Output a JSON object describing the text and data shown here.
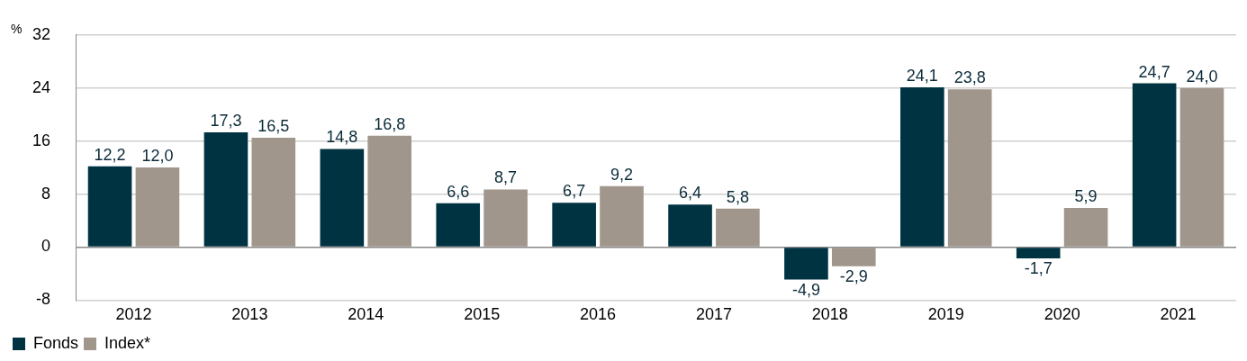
{
  "chart_data": {
    "type": "bar",
    "ylabel": "%",
    "categories": [
      "2012",
      "2013",
      "2014",
      "2015",
      "2016",
      "2017",
      "2018",
      "2019",
      "2020",
      "2021"
    ],
    "series": [
      {
        "name": "Fonds",
        "color": "#003341",
        "values": [
          12.2,
          17.3,
          14.8,
          6.6,
          6.7,
          6.4,
          -4.9,
          24.1,
          -1.7,
          24.7
        ],
        "value_labels": [
          "12,2",
          "17,3",
          "14,8",
          "6,6",
          "6,7",
          "6,4",
          "-4,9",
          "24,1",
          "-1,7",
          "24,7"
        ]
      },
      {
        "name": "Index*",
        "color": "#a0968c",
        "values": [
          12.0,
          16.5,
          16.8,
          8.7,
          9.2,
          5.8,
          -2.9,
          23.8,
          5.9,
          24.0
        ],
        "value_labels": [
          "12,0",
          "16,5",
          "16,8",
          "8,7",
          "9,2",
          "5,8",
          "-2,9",
          "23,8",
          "5,9",
          "24,0"
        ]
      }
    ],
    "ylim": [
      -8,
      32
    ],
    "yticks": [
      -8,
      0,
      8,
      16,
      24,
      32
    ],
    "grid": "y",
    "legend": "bottom left"
  }
}
